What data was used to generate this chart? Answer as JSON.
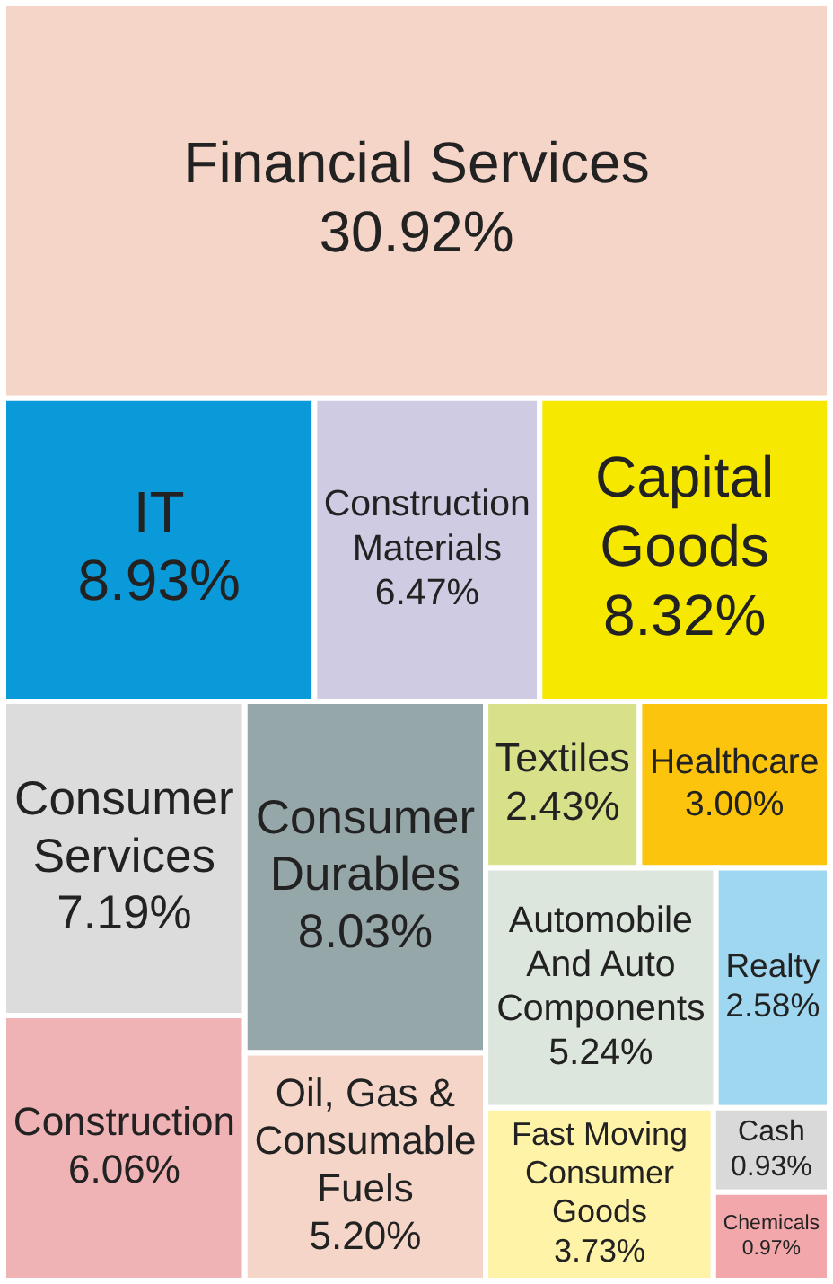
{
  "chart_data": {
    "type": "other",
    "categories": [
      "Financial Services",
      "IT",
      "Construction Materials",
      "Capital Goods",
      "Consumer Services",
      "Construction",
      "Consumer Durables",
      "Oil, Gas & Consumable Fuels",
      "Textiles",
      "Healthcare",
      "Automobile And Auto Components",
      "Realty",
      "Fast Moving Consumer Goods",
      "Cash",
      "Chemicals"
    ],
    "values": [
      30.92,
      8.93,
      6.47,
      8.32,
      7.19,
      6.06,
      8.03,
      5.2,
      2.43,
      3.0,
      5.24,
      2.58,
      3.73,
      0.93,
      0.97
    ],
    "value_labels": [
      "30.92%",
      "8.93%",
      "6.47%",
      "8.32%",
      "7.19%",
      "6.06%",
      "8.03%",
      "5.20%",
      "2.43%",
      "3.00%",
      "5.24%",
      "2.58%",
      "3.73%",
      "0.93%",
      "0.97%"
    ],
    "colors": [
      "#f5d5c8",
      "#0a9ad9",
      "#cfcbe3",
      "#f7e800",
      "#dcdcdc",
      "#f0b3b5",
      "#96a7aa",
      "#f5d5c8",
      "#d9e08a",
      "#fcc40c",
      "#dde6dd",
      "#9fd6f0",
      "#fff3a8",
      "#d9d9d9",
      "#f2a7ab"
    ]
  }
}
